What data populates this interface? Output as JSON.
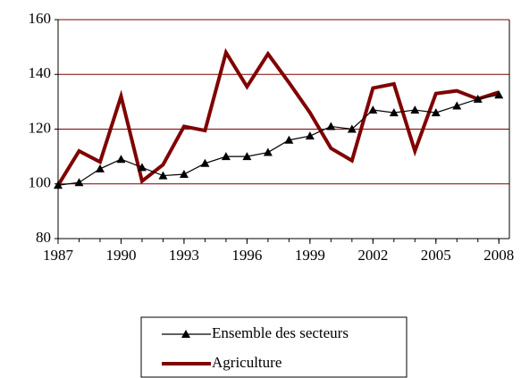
{
  "chart_data": {
    "type": "line",
    "x": [
      1987,
      1988,
      1989,
      1990,
      1991,
      1992,
      1993,
      1994,
      1995,
      1996,
      1997,
      1998,
      1999,
      2000,
      2001,
      2002,
      2003,
      2004,
      2005,
      2006,
      2007,
      2008
    ],
    "series": [
      {
        "name": "Ensemble des secteurs",
        "color": "#000000",
        "marker": "triangle",
        "values": [
          99.5,
          100.5,
          105.5,
          109,
          106,
          103,
          103.5,
          107.5,
          110,
          110,
          111.5,
          116,
          117.5,
          121,
          120,
          127,
          126,
          127,
          126,
          128.5,
          131,
          132.5
        ]
      },
      {
        "name": "Agriculture",
        "color": "#800000",
        "marker": "none",
        "values": [
          99.5,
          112,
          108,
          132,
          101,
          107,
          121,
          119.5,
          148,
          135.5,
          147.5,
          137,
          126,
          113,
          108.5,
          135,
          136.5,
          112,
          133,
          134,
          131,
          133.5
        ]
      }
    ],
    "xlim": [
      1987,
      2008.5
    ],
    "xticks": [
      1987,
      1990,
      1993,
      1996,
      1999,
      2002,
      2005,
      2008
    ],
    "ylim": [
      80,
      160
    ],
    "yticks": [
      80,
      100,
      120,
      140,
      160
    ],
    "grid": true,
    "grid_color": "#800000",
    "legend": "bottom"
  }
}
